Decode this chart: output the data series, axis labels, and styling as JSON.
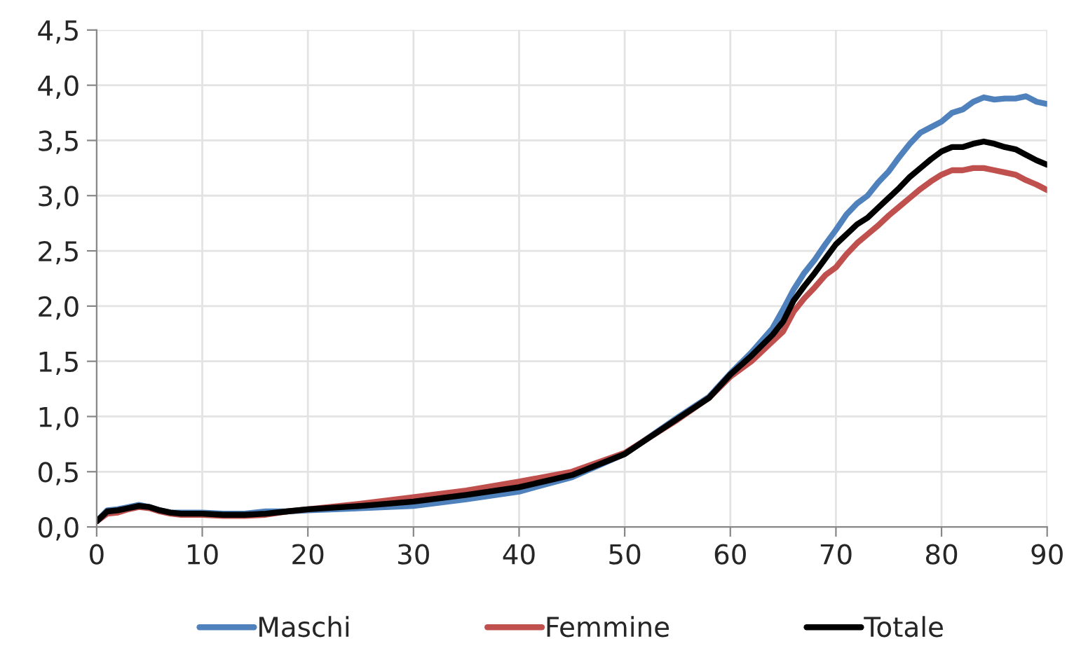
{
  "chart_data": {
    "type": "line",
    "x": [
      0,
      1,
      2,
      3,
      4,
      5,
      6,
      7,
      8,
      10,
      12,
      14,
      16,
      18,
      20,
      25,
      30,
      35,
      40,
      45,
      50,
      55,
      58,
      60,
      62,
      64,
      65,
      66,
      67,
      68,
      69,
      70,
      71,
      72,
      73,
      74,
      75,
      76,
      77,
      78,
      79,
      80,
      81,
      82,
      83,
      84,
      85,
      86,
      87,
      88,
      89,
      90
    ],
    "series": [
      {
        "name": "Maschi",
        "color": "#4f81bd",
        "values": [
          0.05,
          0.15,
          0.16,
          0.18,
          0.2,
          0.18,
          0.15,
          0.13,
          0.13,
          0.13,
          0.12,
          0.12,
          0.14,
          0.14,
          0.15,
          0.17,
          0.19,
          0.25,
          0.32,
          0.45,
          0.66,
          0.99,
          1.18,
          1.39,
          1.58,
          1.8,
          1.97,
          2.15,
          2.3,
          2.42,
          2.56,
          2.69,
          2.83,
          2.93,
          3.0,
          3.12,
          3.22,
          3.35,
          3.47,
          3.57,
          3.62,
          3.67,
          3.75,
          3.78,
          3.85,
          3.89,
          3.87,
          3.88,
          3.88,
          3.9,
          3.85,
          3.83
        ]
      },
      {
        "name": "Femmine",
        "color": "#c0504d",
        "values": [
          0.05,
          0.12,
          0.13,
          0.16,
          0.18,
          0.17,
          0.14,
          0.12,
          0.11,
          0.11,
          0.1,
          0.1,
          0.11,
          0.14,
          0.16,
          0.21,
          0.27,
          0.33,
          0.41,
          0.5,
          0.67,
          0.97,
          1.17,
          1.36,
          1.5,
          1.68,
          1.77,
          1.95,
          2.07,
          2.17,
          2.28,
          2.35,
          2.47,
          2.57,
          2.65,
          2.73,
          2.82,
          2.9,
          2.98,
          3.06,
          3.13,
          3.19,
          3.23,
          3.23,
          3.25,
          3.25,
          3.23,
          3.21,
          3.19,
          3.14,
          3.1,
          3.05
        ]
      },
      {
        "name": "Totale",
        "color": "#000000",
        "values": [
          0.05,
          0.14,
          0.15,
          0.17,
          0.19,
          0.18,
          0.15,
          0.13,
          0.12,
          0.12,
          0.11,
          0.11,
          0.12,
          0.14,
          0.16,
          0.19,
          0.23,
          0.29,
          0.36,
          0.47,
          0.66,
          0.98,
          1.17,
          1.38,
          1.55,
          1.74,
          1.86,
          2.05,
          2.18,
          2.3,
          2.43,
          2.56,
          2.65,
          2.74,
          2.8,
          2.89,
          2.98,
          3.07,
          3.17,
          3.25,
          3.33,
          3.4,
          3.44,
          3.44,
          3.47,
          3.49,
          3.47,
          3.44,
          3.42,
          3.37,
          3.32,
          3.28
        ]
      }
    ],
    "xlim": [
      0,
      90
    ],
    "xticks": [
      0,
      10,
      20,
      30,
      40,
      50,
      60,
      70,
      80,
      90
    ],
    "ylim": [
      0,
      4.5
    ],
    "yticks": [
      {
        "value": 0,
        "label": "0,0"
      },
      {
        "value": 0.5,
        "label": "0,5"
      },
      {
        "value": 1,
        "label": "1,0"
      },
      {
        "value": 1.5,
        "label": "1,5"
      },
      {
        "value": 2,
        "label": "2,0"
      },
      {
        "value": 2.5,
        "label": "2,5"
      },
      {
        "value": 3,
        "label": "3,0"
      },
      {
        "value": 3.5,
        "label": "3,5"
      },
      {
        "value": 4,
        "label": "4,0"
      },
      {
        "value": 4.5,
        "label": "4,5"
      }
    ],
    "grid": true,
    "legend": "bottom",
    "line_style": "solid"
  }
}
